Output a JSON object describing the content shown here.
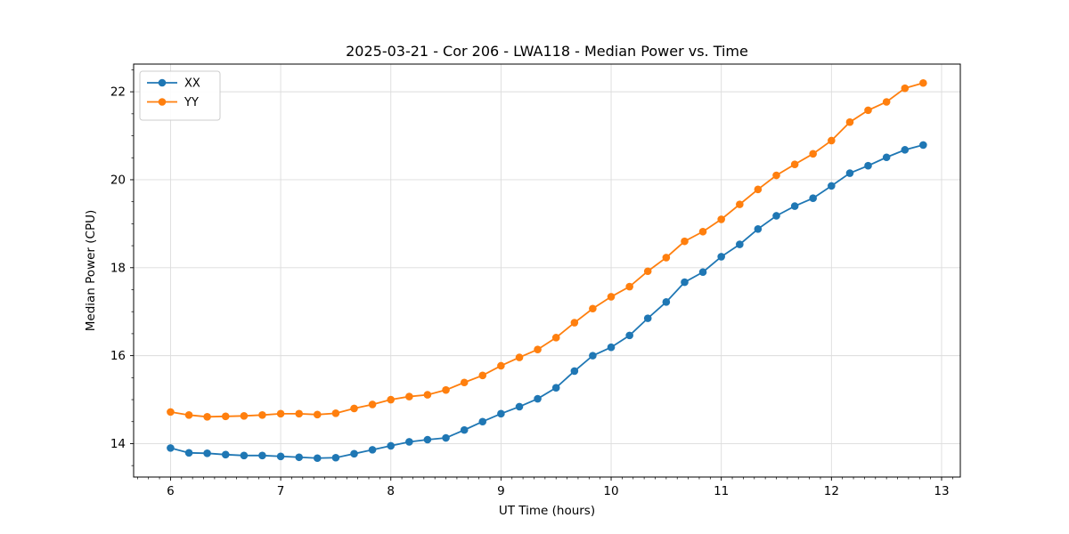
{
  "chart_data": {
    "type": "line",
    "title": "2025-03-21 - Cor 206 - LWA118 - Median Power vs. Time",
    "xlabel": "UT Time (hours)",
    "ylabel": "Median Power (CPU)",
    "xlim": [
      5.665,
      13.17
    ],
    "ylim": [
      13.24,
      22.63
    ],
    "xticks": [
      6,
      7,
      8,
      9,
      10,
      11,
      12,
      13
    ],
    "yticks": [
      14,
      16,
      18,
      20,
      22
    ],
    "xtick_labels": [
      "6",
      "7",
      "8",
      "9",
      "10",
      "11",
      "12",
      "13"
    ],
    "ytick_labels": [
      "14",
      "16",
      "18",
      "20",
      "22"
    ],
    "x_minor_step": 0.1,
    "y_minor_step": 0.5,
    "grid": true,
    "legend_position": "upper left",
    "x": [
      6.0,
      6.167,
      6.333,
      6.5,
      6.667,
      6.833,
      7.0,
      7.167,
      7.333,
      7.5,
      7.667,
      7.833,
      8.0,
      8.167,
      8.333,
      8.5,
      8.667,
      8.833,
      9.0,
      9.167,
      9.333,
      9.5,
      9.667,
      9.833,
      10.0,
      10.167,
      10.333,
      10.5,
      10.667,
      10.833,
      11.0,
      11.167,
      11.333,
      11.5,
      11.667,
      11.833,
      12.0,
      12.167,
      12.333,
      12.5,
      12.667,
      12.833
    ],
    "series": [
      {
        "name": "XX",
        "color": "#1f77b4",
        "values": [
          13.9,
          13.79,
          13.78,
          13.75,
          13.73,
          13.73,
          13.71,
          13.69,
          13.67,
          13.68,
          13.77,
          13.86,
          13.95,
          14.04,
          14.09,
          14.13,
          14.31,
          14.5,
          14.68,
          14.84,
          15.02,
          15.27,
          15.65,
          16.0,
          16.19,
          16.46,
          16.85,
          17.22,
          17.67,
          17.9,
          18.25,
          18.53,
          18.88,
          19.18,
          19.4,
          19.58,
          19.86,
          20.15,
          20.32,
          20.51,
          20.68,
          20.79
        ]
      },
      {
        "name": "YY",
        "color": "#ff7f0e",
        "values": [
          14.72,
          14.65,
          14.61,
          14.62,
          14.63,
          14.65,
          14.68,
          14.68,
          14.66,
          14.69,
          14.8,
          14.89,
          15.0,
          15.07,
          15.11,
          15.22,
          15.39,
          15.55,
          15.77,
          15.96,
          16.14,
          16.41,
          16.75,
          17.07,
          17.34,
          17.57,
          17.92,
          18.23,
          18.6,
          18.82,
          19.1,
          19.44,
          19.78,
          20.1,
          20.35,
          20.59,
          20.89,
          21.31,
          21.58,
          21.77,
          22.08,
          22.2
        ]
      }
    ]
  }
}
